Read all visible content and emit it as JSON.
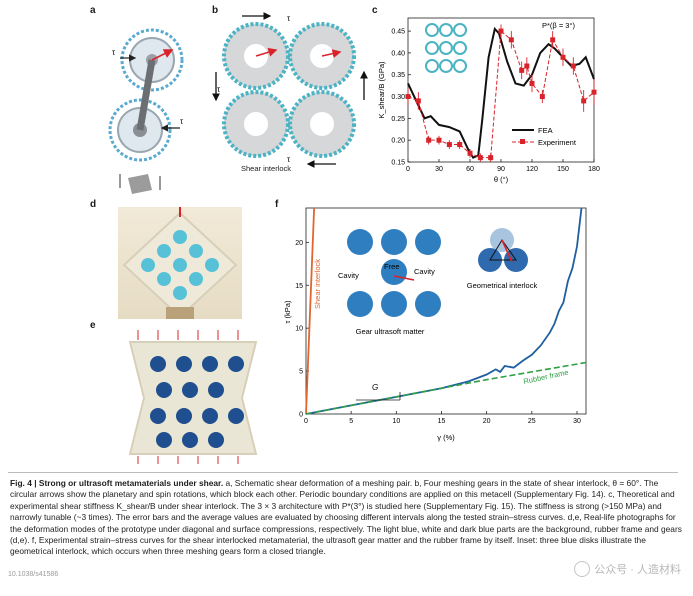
{
  "panels": {
    "a": "a",
    "b": "b",
    "c": "c",
    "d": "d",
    "e": "e",
    "f": "f"
  },
  "panel_a": {
    "tau": "τ"
  },
  "panel_b": {
    "tau": "τ",
    "label": "Shear interlock"
  },
  "panel_c": {
    "chart_data": {
      "type": "line",
      "xlabel": "θ (°)",
      "ylabel": "K_shear/B (GPa)",
      "annotation": "P*(β = 3°)",
      "xlim": [
        0,
        180
      ],
      "ylim": [
        0.15,
        0.48
      ],
      "xticks": [
        0,
        30,
        60,
        90,
        120,
        150,
        180
      ],
      "yticks": [
        0.15,
        0.2,
        0.25,
        0.3,
        0.35,
        0.4,
        0.45
      ],
      "series": [
        {
          "name": "FEA",
          "x": [
            0,
            8,
            16,
            22,
            30,
            40,
            50,
            58,
            63,
            68,
            72,
            78,
            84,
            88,
            96,
            104,
            112,
            120,
            128,
            136,
            142,
            150,
            158,
            166,
            172,
            180
          ],
          "y": [
            0.33,
            0.29,
            0.25,
            0.255,
            0.235,
            0.23,
            0.22,
            0.18,
            0.16,
            0.165,
            0.25,
            0.39,
            0.455,
            0.445,
            0.38,
            0.33,
            0.325,
            0.35,
            0.4,
            0.42,
            0.41,
            0.39,
            0.37,
            0.375,
            0.39,
            0.34
          ]
        },
        {
          "name": "Experiment",
          "x": [
            0,
            10,
            20,
            30,
            40,
            50,
            60,
            70,
            80,
            90,
            100,
            110,
            115,
            120,
            130,
            140,
            150,
            160,
            170,
            180
          ],
          "y": [
            0.3,
            0.29,
            0.2,
            0.2,
            0.19,
            0.19,
            0.17,
            0.16,
            0.16,
            0.45,
            0.43,
            0.36,
            0.37,
            0.33,
            0.3,
            0.43,
            0.39,
            0.37,
            0.29,
            0.31
          ],
          "err": [
            0.02,
            0.02,
            0.01,
            0.01,
            0.01,
            0.01,
            0.01,
            0.01,
            0.01,
            0.015,
            0.02,
            0.02,
            0.02,
            0.02,
            0.015,
            0.02,
            0.02,
            0.02,
            0.025,
            0.03
          ]
        }
      ]
    }
  },
  "panel_f": {
    "chart_data": {
      "type": "line",
      "xlabel": "γ (%)",
      "ylabel": "τ (kPa)",
      "xlim": [
        0,
        31
      ],
      "ylim": [
        0,
        24
      ],
      "xticks": [
        0,
        5,
        10,
        15,
        20,
        25,
        30
      ],
      "yticks": [
        0,
        5,
        10,
        15,
        20
      ],
      "series": [
        {
          "name": "Shear interlock",
          "x": [
            0,
            0.3,
            0.6,
            0.9
          ],
          "y": [
            0,
            8,
            16,
            24
          ]
        },
        {
          "name": "Gear ultrasoft matter",
          "x": [
            0,
            5,
            10,
            15,
            18,
            20,
            21,
            21.5,
            22,
            23,
            24,
            25,
            26,
            27,
            27.5,
            28,
            28.5,
            29,
            29.5,
            30,
            30.5
          ],
          "y": [
            0,
            1.0,
            2.0,
            3.0,
            3.8,
            4.6,
            5.2,
            4.9,
            5.6,
            5.4,
            6.2,
            6.9,
            8.0,
            9.5,
            10.5,
            12.0,
            13.0,
            15.5,
            17.0,
            19.5,
            24.0
          ]
        },
        {
          "name": "Rubber frame",
          "x": [
            0,
            10,
            20,
            31
          ],
          "y": [
            0,
            2.0,
            4.0,
            6.0
          ]
        }
      ],
      "annotations": {
        "shear_interlock": "Shear interlock",
        "rubber_frame": "Rubber frame",
        "g": "G",
        "cavity_left": "Cavity",
        "cavity_right": "Cavity",
        "free": "Free",
        "gear_ultrasoft": "Gear ultrasoft matter",
        "geometrical_interlock": "Geometrical interlock"
      }
    }
  },
  "caption": {
    "heading": "Fig. 4 | Strong or ultrasoft metamaterials under shear.",
    "body": " a, Schematic shear deformation of a meshing pair. b, Four meshing gears in the state of shear interlock, θ = 60°. The circular arrows show the planetary and spin rotations, which block each other. Periodic boundary conditions are applied on this metacell (Supplementary Fig. 14). c, Theoretical and experimental shear stiffness K_shear/B under shear interlock. The 3 × 3 architecture with P*(3°) is studied here (Supplementary Fig. 15). The stiffness is strong (>150 MPa) and narrowly tunable (~3 times). The error bars and the average values are evaluated by choosing different intervals along the tested strain–stress curves. d,e, Real-life photographs for the deformation modes of the prototype under diagonal and surface compressions, respectively. The light blue, white and dark blue parts are the background, rubber frame and gears (d,e). f, Experimental strain–stress curves for the shear interlocked metamaterial, the ultrasoft gear matter and the rubber frame by itself. Inset: three blue disks illustrate the geometrical interlock, which occurs when three meshing gears form a closed triangle."
  },
  "watermark": "公众号 · 人造材料",
  "corner_mark": "10.1038/s41586"
}
